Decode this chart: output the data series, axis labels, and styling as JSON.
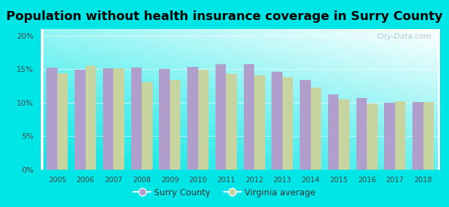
{
  "title": "Population without health insurance coverage in Surry County",
  "years": [
    2005,
    2006,
    2007,
    2008,
    2009,
    2010,
    2011,
    2012,
    2013,
    2014,
    2015,
    2016,
    2017,
    2018
  ],
  "surry_county": [
    15.2,
    14.9,
    15.1,
    15.2,
    15.0,
    15.3,
    15.7,
    15.8,
    14.6,
    13.4,
    11.2,
    10.7,
    10.0,
    10.1
  ],
  "virginia_avg": [
    14.4,
    15.5,
    15.1,
    13.1,
    13.4,
    14.9,
    14.3,
    14.1,
    13.8,
    12.3,
    10.5,
    9.9,
    10.2,
    10.1
  ],
  "surry_color": "#b09fcc",
  "virginia_color": "#c8d4a0",
  "background_outer": "#00e5e5",
  "ylim": [
    0,
    21
  ],
  "yticks": [
    0,
    5,
    10,
    15,
    20
  ],
  "ytick_labels": [
    "0%",
    "5%",
    "10%",
    "15%",
    "20%"
  ],
  "legend_surry": "Surry County",
  "legend_virginia": "Virginia average",
  "title_fontsize": 13,
  "watermark": "City-Data.com"
}
